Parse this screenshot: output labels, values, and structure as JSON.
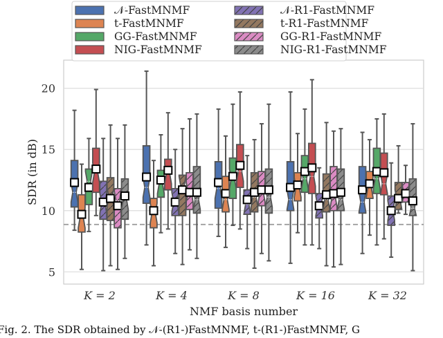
{
  "chart_data": {
    "type": "box",
    "title": "",
    "xlabel": "NMF basis number",
    "ylabel": "SDR (in dB)",
    "ylim": [
      4.0,
      22.3
    ],
    "yticks": [
      5,
      10,
      15,
      20
    ],
    "grid": true,
    "legend_position": "top",
    "categories": [
      "K = 2",
      "K = 4",
      "K = 8",
      "K = 16",
      "K = 32"
    ],
    "reference_line": {
      "value": 8.87,
      "style": "dashed",
      "color": "#999999"
    },
    "stats_order": [
      "whisker_low",
      "q1",
      "median",
      "q3",
      "whisker_high",
      "mean"
    ],
    "series": [
      {
        "name": "𝒩-FastMNMF",
        "color": "#4C72B0",
        "hatched": false,
        "stats": [
          [
            8.4,
            10.3,
            11.5,
            14.1,
            18.2,
            12.3
          ],
          [
            7.2,
            10.6,
            11.9,
            15.3,
            21.4,
            12.75
          ],
          [
            7.9,
            10.2,
            11.8,
            14.0,
            18.3,
            12.3
          ],
          [
            5.7,
            10.0,
            10.9,
            14.0,
            19.7,
            11.9
          ],
          [
            6.5,
            9.8,
            10.7,
            13.6,
            16.4,
            11.7
          ]
        ]
      },
      {
        "name": "t-FastMNMF",
        "color": "#DD8452",
        "hatched": false,
        "stats": [
          [
            5.2,
            8.25,
            9.4,
            11.3,
            13.8,
            9.7
          ],
          [
            5.5,
            8.6,
            9.8,
            11.0,
            14.1,
            10.0
          ],
          [
            7.0,
            9.9,
            10.9,
            12.8,
            16.1,
            11.4
          ],
          [
            8.2,
            10.8,
            11.9,
            13.1,
            16.3,
            12.1
          ],
          [
            8.0,
            11.0,
            11.9,
            13.2,
            15.8,
            12.2
          ]
        ]
      },
      {
        "name": "GG-FastMNMF",
        "color": "#55A868",
        "hatched": false,
        "stats": [
          [
            8.3,
            10.5,
            12.4,
            13.4,
            15.9,
            11.9
          ],
          [
            8.2,
            11.1,
            12.2,
            13.3,
            16.2,
            12.5
          ],
          [
            8.8,
            11.0,
            12.6,
            14.3,
            18.7,
            12.8
          ],
          [
            7.2,
            11.5,
            12.6,
            14.5,
            18.3,
            13.2
          ],
          [
            7.2,
            11.4,
            12.6,
            15.1,
            17.5,
            13.2
          ]
        ]
      },
      {
        "name": "NIG-FastMNMF",
        "color": "#C44E52",
        "hatched": false,
        "stats": [
          [
            9.6,
            11.5,
            13.1,
            15.1,
            19.9,
            13.4
          ],
          [
            8.5,
            11.7,
            13.0,
            14.2,
            18.0,
            13.3
          ],
          [
            8.5,
            11.9,
            13.2,
            15.4,
            19.7,
            13.7
          ],
          [
            7.2,
            11.4,
            12.8,
            15.5,
            20.7,
            13.5
          ],
          [
            7.7,
            11.3,
            12.2,
            14.7,
            17.9,
            13.1
          ]
        ]
      },
      {
        "name": "𝒩-R1-FastMNMF",
        "color": "#8172B3",
        "hatched": true,
        "stats": [
          [
            5.1,
            9.3,
            10.6,
            12.4,
            15.9,
            10.7
          ],
          [
            6.5,
            9.6,
            10.7,
            11.8,
            15.0,
            10.7
          ],
          [
            6.9,
            9.7,
            10.5,
            11.7,
            14.5,
            10.9
          ],
          [
            6.9,
            9.4,
            10.4,
            11.4,
            13.5,
            10.4
          ],
          [
            6.2,
            8.8,
            10.0,
            11.2,
            13.9,
            10.0
          ]
        ]
      },
      {
        "name": "t-R1-FastMNMF",
        "color": "#937860",
        "hatched": true,
        "stats": [
          [
            5.5,
            9.2,
            11.1,
            12.7,
            17.0,
            11.0
          ],
          [
            5.6,
            9.6,
            12.0,
            12.9,
            16.7,
            11.7
          ],
          [
            5.3,
            9.9,
            11.1,
            13.1,
            15.8,
            11.5
          ],
          [
            5.5,
            9.9,
            10.9,
            13.0,
            17.2,
            11.3
          ],
          [
            9.8,
            10.1,
            10.9,
            12.3,
            15.3,
            11.0
          ]
        ]
      },
      {
        "name": "GG-R1-FastMNMF",
        "color": "#DA8BC3",
        "hatched": true,
        "stats": [
          [
            5.2,
            8.6,
            10.8,
            11.8,
            15.9,
            10.4
          ],
          [
            6.8,
            10.1,
            11.5,
            13.1,
            17.5,
            11.5
          ],
          [
            6.5,
            10.4,
            11.5,
            13.2,
            17.1,
            11.7
          ],
          [
            5.4,
            10.0,
            11.1,
            13.6,
            16.5,
            11.4
          ],
          [
            9.7,
            10.7,
            11.3,
            12.3,
            13.7,
            11.4
          ]
        ]
      },
      {
        "name": "NIG-R1-FastMNMF",
        "color": "#8C8C8C",
        "hatched": true,
        "stats": [
          [
            6.1,
            9.3,
            10.9,
            12.6,
            17.0,
            11.2
          ],
          [
            6.1,
            9.8,
            10.9,
            13.6,
            17.9,
            11.5
          ],
          [
            5.9,
            9.8,
            11.1,
            13.4,
            18.7,
            11.7
          ],
          [
            5.6,
            10.0,
            10.9,
            13.4,
            16.7,
            11.5
          ],
          [
            5.1,
            9.6,
            10.2,
            12.6,
            17.1,
            10.8
          ]
        ]
      }
    ]
  },
  "caption": "Fig. 2.   The SDR obtained by 𝒩-(R1-)FastMNMF, t-(R1-)FastMNMF, G"
}
